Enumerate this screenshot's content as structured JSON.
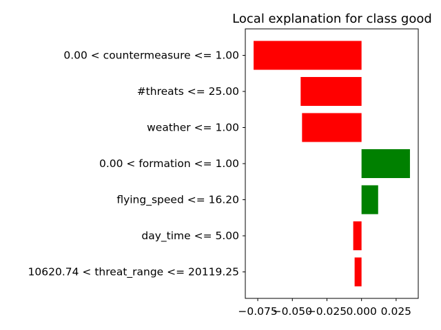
{
  "chart_data": {
    "type": "bar",
    "orientation": "horizontal",
    "title": "Local explanation for class good",
    "xlabel": "",
    "ylabel": "",
    "categories": [
      "0.00 < countermeasure <= 1.00",
      "#threats <= 25.00",
      "weather <= 1.00",
      "0.00 < formation <= 1.00",
      "flying_speed <= 16.20",
      "day_time <= 5.00",
      "10620.74 < threat_range <= 20119.25"
    ],
    "values": [
      -0.078,
      -0.044,
      -0.043,
      0.035,
      0.012,
      -0.006,
      -0.005
    ],
    "xlim": [
      -0.084,
      0.041
    ],
    "xticks": [
      -0.075,
      -0.05,
      -0.025,
      0.0,
      0.025
    ],
    "xtick_labels": [
      "−0.075",
      "−0.050",
      "−0.025",
      "0.000",
      "0.025"
    ],
    "grid": false,
    "legend": "none",
    "colors": {
      "positive": "#008000",
      "negative": "#ff0000"
    }
  }
}
